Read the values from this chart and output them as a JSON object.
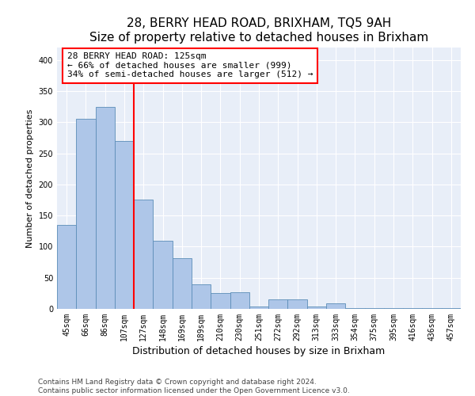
{
  "title": "28, BERRY HEAD ROAD, BRIXHAM, TQ5 9AH",
  "subtitle": "Size of property relative to detached houses in Brixham",
  "xlabel": "Distribution of detached houses by size in Brixham",
  "ylabel": "Number of detached properties",
  "categories": [
    "45sqm",
    "66sqm",
    "86sqm",
    "107sqm",
    "127sqm",
    "148sqm",
    "169sqm",
    "189sqm",
    "210sqm",
    "230sqm",
    "251sqm",
    "272sqm",
    "292sqm",
    "313sqm",
    "333sqm",
    "354sqm",
    "375sqm",
    "395sqm",
    "416sqm",
    "436sqm",
    "457sqm"
  ],
  "values": [
    135,
    305,
    325,
    270,
    175,
    110,
    82,
    40,
    26,
    27,
    4,
    15,
    15,
    4,
    9,
    1,
    1,
    1,
    1,
    1,
    1
  ],
  "bar_color": "#aec6e8",
  "bar_edge_color": "#5b8db8",
  "annotation_line1": "28 BERRY HEAD ROAD: 125sqm",
  "annotation_line2": "← 66% of detached houses are smaller (999)",
  "annotation_line3": "34% of semi-detached houses are larger (512) →",
  "ylim": [
    0,
    420
  ],
  "yticks": [
    0,
    50,
    100,
    150,
    200,
    250,
    300,
    350,
    400
  ],
  "background_color": "#e8eef8",
  "footer_line1": "Contains HM Land Registry data © Crown copyright and database right 2024.",
  "footer_line2": "Contains public sector information licensed under the Open Government Licence v3.0.",
  "title_fontsize": 11,
  "subtitle_fontsize": 9,
  "xlabel_fontsize": 9,
  "ylabel_fontsize": 8,
  "tick_fontsize": 7,
  "annotation_fontsize": 8,
  "footer_fontsize": 6.5
}
